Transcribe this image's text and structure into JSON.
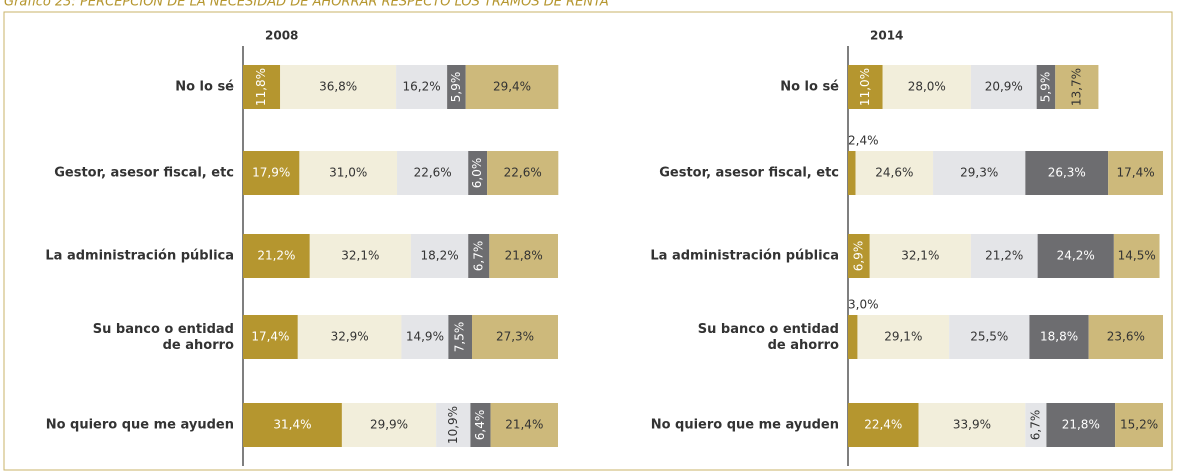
{
  "header": {
    "title": "Gráfico 23: PERCEPCIÓN DE LA NECESIDAD DE AHORRAR RESPECTO LOS TRAMOS DE RENTA"
  },
  "chart_data": [
    {
      "type": "stacked_bar_horizontal",
      "title": "2008",
      "categories": [
        "No lo sé",
        "Gestor, asesor fiscal, etc",
        "La administración pública",
        "Su banco o entidad de ahorro",
        "No quiero que me ayuden"
      ],
      "xlim": [
        0,
        100
      ],
      "series": [
        {
          "color": "#b5962f",
          "values": [
            11.8,
            17.9,
            21.2,
            17.4,
            31.4
          ],
          "value_labels": [
            "11,8%",
            "17,9%",
            "21,2%",
            "17,4%",
            "31,4%"
          ]
        },
        {
          "color": "#f2eedb",
          "values": [
            36.8,
            31.0,
            32.1,
            32.9,
            29.9
          ],
          "value_labels": [
            "36,8%",
            "31,0%",
            "32,1%",
            "32,9%",
            "29,9%"
          ]
        },
        {
          "color": "#e4e5e8",
          "values": [
            16.2,
            22.6,
            18.2,
            14.9,
            10.9
          ],
          "value_labels": [
            "16,2%",
            "22,6%",
            "18,2%",
            "14,9%",
            "10,9%"
          ]
        },
        {
          "color": "#6d6d70",
          "values": [
            5.9,
            6.0,
            6.7,
            7.5,
            6.4
          ],
          "value_labels": [
            "5,9%",
            "6,0%",
            "6,7%",
            "7,5%",
            "6,4%"
          ]
        },
        {
          "color": "#cdb97b",
          "values": [
            29.4,
            22.6,
            21.8,
            27.3,
            21.4
          ],
          "value_labels": [
            "29,4%",
            "22,6%",
            "21,8%",
            "27,3%",
            "21,4%"
          ]
        }
      ]
    },
    {
      "type": "stacked_bar_horizontal",
      "title": "2014",
      "categories": [
        "No lo sé",
        "Gestor, asesor fiscal, etc",
        "La administración pública",
        "Su banco o entidad de ahorro",
        "No quiero que me ayuden"
      ],
      "xlim": [
        0,
        100
      ],
      "series": [
        {
          "color": "#b5962f",
          "values": [
            11.0,
            2.4,
            6.9,
            3.0,
            22.4
          ],
          "value_labels": [
            "11,0%",
            "2,4%",
            "6,9%",
            "3,0%",
            "22,4%"
          ]
        },
        {
          "color": "#f2eedb",
          "values": [
            28.0,
            24.6,
            32.1,
            29.1,
            33.9
          ],
          "value_labels": [
            "28,0%",
            "24,6%",
            "32,1%",
            "29,1%",
            "33,9%"
          ]
        },
        {
          "color": "#e4e5e8",
          "values": [
            20.9,
            29.3,
            21.2,
            25.5,
            6.7
          ],
          "value_labels": [
            "20,9%",
            "29,3%",
            "21,2%",
            "25,5%",
            "6,7%"
          ]
        },
        {
          "color": "#6d6d70",
          "values": [
            5.9,
            26.3,
            24.2,
            18.8,
            21.8
          ],
          "value_labels": [
            "5,9%",
            "26,3%",
            "24,2%",
            "18,8%",
            "21,8%"
          ]
        },
        {
          "color": "#cdb97b",
          "values": [
            13.7,
            17.4,
            14.5,
            23.6,
            15.2
          ],
          "value_labels": [
            "13,7%",
            "17,4%",
            "14,5%",
            "23,6%",
            "15,2%"
          ]
        }
      ]
    }
  ]
}
